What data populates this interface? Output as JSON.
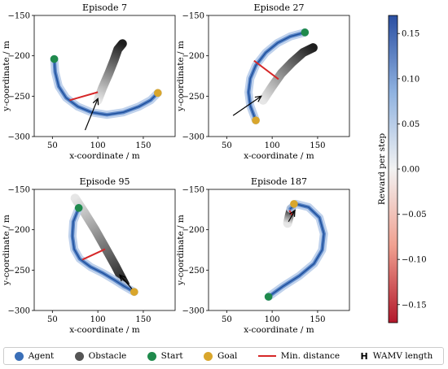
{
  "chart_data": {
    "type": "line",
    "panels": [
      {
        "title": "Episode 7",
        "xlabel": "x-coordinate / m",
        "ylabel": "y-coordinate / m",
        "xlim": [
          30,
          185
        ],
        "ylim": [
          -300,
          -150
        ],
        "xticks": [
          50,
          100,
          150
        ],
        "yticks": [
          -150,
          -200,
          -250,
          -300
        ],
        "agent": [
          [
            52,
            -204
          ],
          [
            53,
            -220
          ],
          [
            57,
            -238
          ],
          [
            65,
            -252
          ],
          [
            78,
            -263
          ],
          [
            93,
            -270
          ],
          [
            110,
            -273
          ],
          [
            128,
            -270
          ],
          [
            145,
            -263
          ],
          [
            158,
            -255
          ],
          [
            166,
            -246
          ]
        ],
        "obstacle": [
          [
            100,
            -255
          ],
          [
            105,
            -240
          ],
          [
            112,
            -222
          ],
          [
            118,
            -205
          ],
          [
            122,
            -192
          ],
          [
            127,
            -185
          ]
        ],
        "start": [
          52,
          -204
        ],
        "goal": [
          166,
          -246
        ],
        "min_distance": [
          [
            69,
            -255
          ],
          [
            100,
            -245
          ]
        ],
        "arrow": [
          [
            86,
            -292
          ],
          [
            100,
            -253
          ]
        ]
      },
      {
        "title": "Episode 27",
        "xlabel": "x-coordinate / m",
        "ylabel": "y-coordinate / m",
        "xlim": [
          30,
          185
        ],
        "ylim": [
          -300,
          -150
        ],
        "xticks": [
          50,
          100,
          150
        ],
        "yticks": [
          -150,
          -200,
          -250,
          -300
        ],
        "agent": [
          [
            82,
            -280
          ],
          [
            76,
            -262
          ],
          [
            74,
            -245
          ],
          [
            76,
            -228
          ],
          [
            82,
            -212
          ],
          [
            93,
            -196
          ],
          [
            106,
            -184
          ],
          [
            120,
            -176
          ],
          [
            136,
            -171
          ]
        ],
        "obstacle": [
          [
            90,
            -255
          ],
          [
            100,
            -238
          ],
          [
            110,
            -222
          ],
          [
            122,
            -208
          ],
          [
            134,
            -196
          ],
          [
            145,
            -190
          ]
        ],
        "start": [
          136,
          -171
        ],
        "goal": [
          82,
          -280
        ],
        "min_distance": [
          [
            80,
            -206
          ],
          [
            107,
            -229
          ]
        ],
        "arrow": [
          [
            57,
            -274
          ],
          [
            88,
            -250
          ]
        ]
      },
      {
        "title": "Episode 95",
        "xlabel": "x-coordinate / m",
        "ylabel": "y-coordinate / m",
        "xlim": [
          30,
          185
        ],
        "ylim": [
          -300,
          -150
        ],
        "xticks": [
          50,
          100,
          150
        ],
        "yticks": [
          -150,
          -200,
          -250,
          -300
        ],
        "agent": [
          [
            79,
            -173
          ],
          [
            73,
            -190
          ],
          [
            72,
            -208
          ],
          [
            74,
            -224
          ],
          [
            80,
            -236
          ],
          [
            92,
            -246
          ],
          [
            106,
            -254
          ],
          [
            118,
            -262
          ],
          [
            129,
            -270
          ],
          [
            140,
            -277
          ]
        ],
        "obstacle": [
          [
            75,
            -161
          ],
          [
            86,
            -180
          ],
          [
            97,
            -200
          ],
          [
            108,
            -222
          ],
          [
            119,
            -244
          ],
          [
            130,
            -268
          ]
        ],
        "start": [
          79,
          -173
        ],
        "goal": [
          140,
          -277
        ],
        "min_distance": [
          [
            83,
            -237
          ],
          [
            108,
            -224
          ]
        ],
        "arrow": [
          [
            139,
            -275
          ],
          [
            124,
            -256
          ]
        ]
      },
      {
        "title": "Episode 187",
        "xlabel": "x-coordinate / m",
        "ylabel": "y-coordinate / m",
        "xlim": [
          30,
          185
        ],
        "ylim": [
          -300,
          -150
        ],
        "xticks": [
          50,
          100,
          150
        ],
        "yticks": [
          -150,
          -200,
          -250,
          -300
        ],
        "agent": [
          [
            96,
            -283
          ],
          [
            112,
            -270
          ],
          [
            130,
            -257
          ],
          [
            146,
            -242
          ],
          [
            155,
            -225
          ],
          [
            157,
            -205
          ],
          [
            152,
            -185
          ],
          [
            140,
            -172
          ],
          [
            126,
            -168
          ],
          [
            120,
            -174
          ]
        ],
        "obstacle": [
          [
            117,
            -192
          ],
          [
            119,
            -182
          ],
          [
            121,
            -174
          ]
        ],
        "start": [
          96,
          -283
        ],
        "goal": [
          124,
          -168
        ],
        "min_distance": [
          [
            119,
            -176
          ],
          [
            122,
            -182
          ]
        ],
        "arrow": [
          [
            118,
            -190
          ],
          [
            125,
            -176
          ]
        ]
      }
    ],
    "colorbar": {
      "label": "Reward per step",
      "range": [
        -0.17,
        0.17
      ],
      "ticks": [
        0.15,
        0.1,
        0.05,
        0.0,
        -0.05,
        -0.1,
        -0.15
      ],
      "tick_labels": [
        "0.15",
        "0.10",
        "0.05",
        "0.00",
        "−0.05",
        "−0.10",
        "−0.15"
      ]
    }
  },
  "legend": {
    "agent": "Agent",
    "obstacle": "Obstacle",
    "start": "Start",
    "goal": "Goal",
    "min_distance": "Min. distance",
    "wamv_symbol": "H",
    "wamv_length": "WAMV length"
  },
  "colors": {
    "agent": "#3a6fb8",
    "obstacle": "#555555",
    "start": "#1f8a4c",
    "goal": "#d9a62c",
    "min_distance": "#d62728"
  }
}
